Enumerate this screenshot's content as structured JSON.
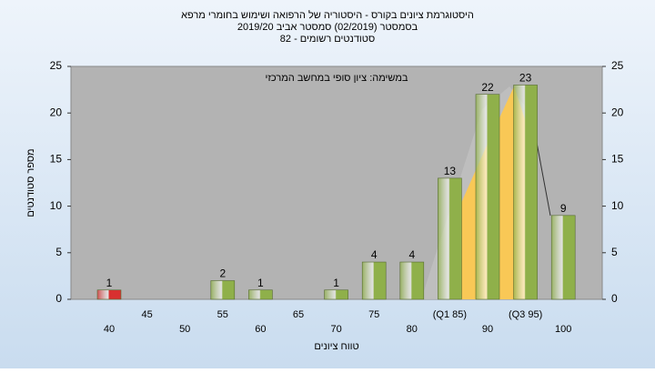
{
  "chart_data": {
    "type": "bar",
    "title": [
      "היסטוגרמת ציונים בקורס - היסטוריה של הרפואה ושימוש בחומרי מרפא",
      "בסמסטר  (02/2019)  סמסטר אביב 2019/20",
      "סטודנטים רשומים - 82"
    ],
    "annotation": "במשימה: ציון סופי במחשב המרכזי",
    "x_label": "טווח ציונים",
    "y_label": "מספר סטודנטים",
    "categories": [
      "40",
      "45",
      "50",
      "55",
      "60",
      "65",
      "70",
      "75",
      "80",
      "(Q1 85)",
      "90",
      "(Q3 95)",
      "100"
    ],
    "values": [
      1,
      null,
      null,
      2,
      1,
      null,
      1,
      4,
      4,
      13,
      22,
      23,
      9
    ],
    "colors": [
      "#d83030",
      "#8fb04a",
      "#8fb04a",
      "#8fb04a",
      "#8fb04a",
      "#8fb04a",
      "#8fb04a",
      "#8fb04a",
      "#8fb04a",
      "#8fb04a",
      "#8fb04a",
      "#8fb04a",
      "#8fb04a"
    ],
    "ylim": [
      0,
      25
    ],
    "yticks": [
      0,
      5,
      10,
      15,
      20,
      25
    ],
    "y2lim": [
      0,
      25
    ],
    "y2ticks": [
      0,
      5,
      10,
      15,
      20,
      25
    ],
    "grid": true
  }
}
